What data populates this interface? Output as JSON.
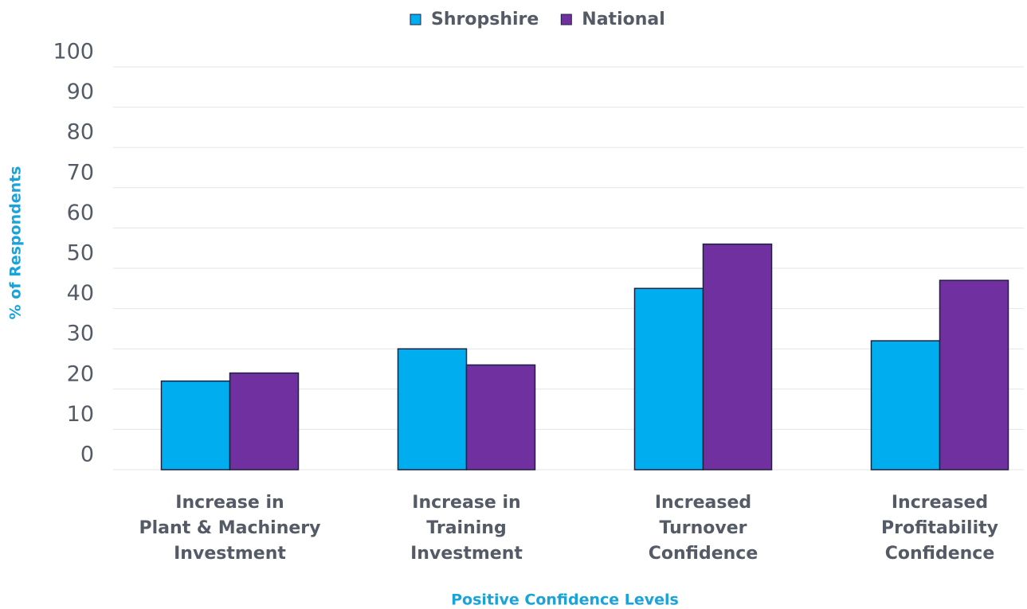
{
  "chart_data": {
    "type": "bar",
    "x_label": "Positive Confidence Levels",
    "y_label": "% of Respondents",
    "categories": [
      "Increase in\nPlant & Machinery\nInvestment",
      "Increase in\nTraining\nInvestment",
      "Increased\nTurnover\nConfidence",
      "Increased\nProfitability\nConfidence"
    ],
    "series": [
      {
        "name": "Shropshire",
        "color": "#00aeef",
        "values": [
          22,
          30,
          45,
          32
        ]
      },
      {
        "name": "National",
        "color": "#7030a0",
        "values": [
          24,
          26,
          56,
          47
        ]
      }
    ],
    "ylim": [
      0,
      100
    ],
    "yticks": [
      0,
      10,
      20,
      30,
      40,
      50,
      60,
      70,
      80,
      90,
      100
    ],
    "grid": true,
    "legend": "top"
  }
}
